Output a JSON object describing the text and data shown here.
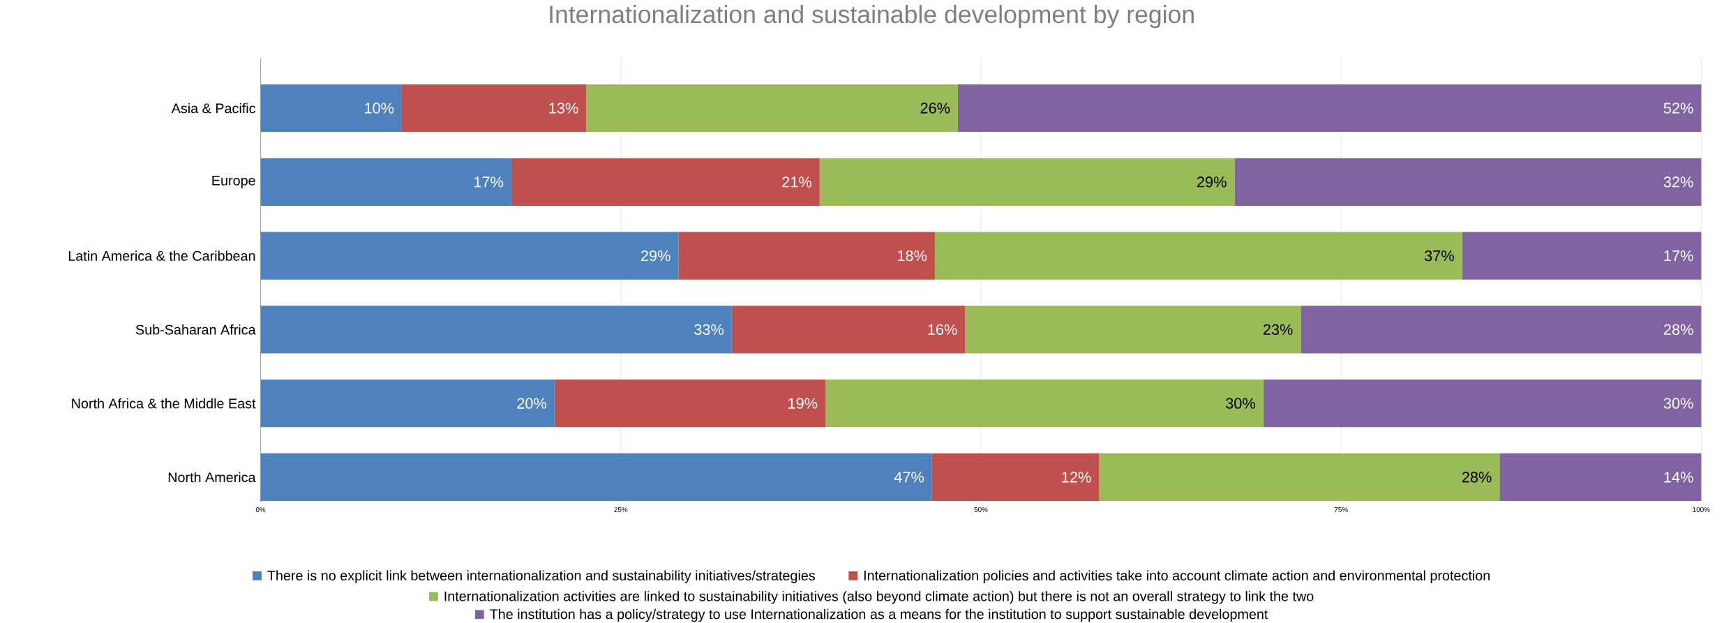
{
  "chart_data": {
    "type": "bar",
    "orientation": "horizontal",
    "stacked": true,
    "title": "Internationalization and sustainable development by region",
    "categories": [
      "Asia & Pacific",
      "Europe",
      "Latin America & the Caribbean",
      "Sub-Saharan Africa",
      "North Africa & the Middle East",
      "North America"
    ],
    "series": [
      {
        "name": "There is no explicit link between internationalization and sustainability initiatives/strategies",
        "color": "#4f81bd",
        "values": [
          9.8,
          17.4,
          29.0,
          32.7,
          20.4,
          46.6
        ],
        "value_labels": [
          "10%",
          "17%",
          "29%",
          "33%",
          "20%",
          "47%"
        ]
      },
      {
        "name": "Internationalization policies and activities take into account climate action and environmental protection",
        "color": "#c0504d",
        "values": [
          12.8,
          21.4,
          17.8,
          16.2,
          18.8,
          11.6
        ],
        "value_labels": [
          "13%",
          "21%",
          "18%",
          "16%",
          "19%",
          "12%"
        ]
      },
      {
        "name": "Internationalization activities are linked to sustainability initiatives (also beyond climate action) but there is not an overall strategy to link the two",
        "color": "#9bbb59",
        "values": [
          25.8,
          28.8,
          36.6,
          23.3,
          30.4,
          27.8
        ],
        "value_labels": [
          "26%",
          "29%",
          "37%",
          "23%",
          "30%",
          "28%"
        ]
      },
      {
        "name": "The institution has a policy/strategy to use Internationalization as a means for the institution to support sustainable development",
        "color": "#8064a2",
        "values": [
          51.6,
          32.4,
          16.6,
          27.8,
          30.4,
          14.0
        ],
        "value_labels": [
          "52%",
          "32%",
          "17%",
          "28%",
          "30%",
          "14%"
        ]
      }
    ],
    "xlim": [
      0,
      100
    ],
    "xticks": [
      {
        "value": 0,
        "label": "0%"
      },
      {
        "value": 25,
        "label": "25%"
      },
      {
        "value": 50,
        "label": "50%"
      },
      {
        "value": 75,
        "label": "75%"
      },
      {
        "value": 100,
        "label": "100%"
      }
    ],
    "grid": "x",
    "legend": "bottom"
  }
}
